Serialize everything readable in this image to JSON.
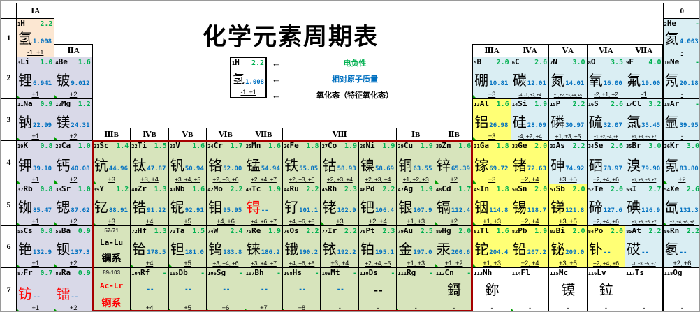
{
  "title": "化学元素周期表",
  "colors": {
    "electronegativity_text": "#00b050",
    "atomic_mass_text": "#0070c0",
    "red_accent_text": "#ff0000",
    "d_block_border": "#a50000",
    "s_block_bg": "#d9d9e8",
    "d_block_bg": "#d7e4bc",
    "p_metal_bg": "#ffff75",
    "nonmetal_bg": "#daeef3",
    "hydrogen_bg": "#fce7d2"
  },
  "legend": {
    "arrow": "←",
    "sample": {
      "z": "1",
      "sym": "H",
      "en": "2.2",
      "name": "氢",
      "mass": "1.008",
      "ox": "-1, +1"
    },
    "items": [
      {
        "label": "电负性",
        "color": "#00b050"
      },
      {
        "label": "相对原子质量",
        "color": "#0070c0"
      },
      {
        "label": "氧化态（特征氧化态）",
        "color": "#000000"
      }
    ]
  },
  "periods": [
    "1",
    "2",
    "3",
    "4",
    "5",
    "6",
    "7"
  ],
  "group_headers": [
    {
      "label": "ⅠA",
      "col": 1,
      "level": "top"
    },
    {
      "label": "0",
      "col": 18,
      "level": "top"
    },
    {
      "label": "ⅡA",
      "col": 2,
      "level": "p1"
    },
    {
      "label": "ⅢA",
      "col": 13,
      "level": "p1"
    },
    {
      "label": "ⅣA",
      "col": 14,
      "level": "p1"
    },
    {
      "label": "ⅤA",
      "col": 15,
      "level": "p1"
    },
    {
      "label": "ⅥA",
      "col": 16,
      "level": "p1"
    },
    {
      "label": "ⅦA",
      "col": 17,
      "level": "p1"
    },
    {
      "label": "ⅢB",
      "col": 3,
      "level": "p3"
    },
    {
      "label": "ⅣB",
      "col": 4,
      "level": "p3"
    },
    {
      "label": "ⅤB",
      "col": 5,
      "level": "p3"
    },
    {
      "label": "ⅥB",
      "col": 6,
      "level": "p3"
    },
    {
      "label": "ⅦB",
      "col": 7,
      "level": "p3"
    },
    {
      "label": "Ⅷ",
      "col": 8,
      "span": 3,
      "level": "p3"
    },
    {
      "label": "ⅠB",
      "col": 11,
      "level": "p3"
    },
    {
      "label": "ⅡB",
      "col": 12,
      "level": "p3"
    }
  ],
  "series_cells": [
    {
      "range": "57-71",
      "sym": "La-Lu",
      "name": "镧系",
      "row": 6,
      "col": 3,
      "red": 0
    },
    {
      "range": "89-103",
      "sym": "Ac-Lr",
      "name": "锕系",
      "row": 7,
      "col": 3,
      "red": 1
    }
  ],
  "elements": [
    {
      "z": "1",
      "s": "H",
      "e": "2.2",
      "n": "氢",
      "m": "1.008",
      "o": "-1, +1",
      "r": 1,
      "c": 1,
      "b": "h"
    },
    {
      "z": "2",
      "s": "He",
      "e": "-",
      "n": "氦",
      "m": "4.003",
      "o": "-",
      "r": 1,
      "c": 18,
      "b": "n"
    },
    {
      "z": "3",
      "s": "Li",
      "e": "1.0",
      "n": "锂",
      "m": "6.941",
      "o": "+1",
      "r": 2,
      "c": 1,
      "b": "s",
      "t": 1
    },
    {
      "z": "4",
      "s": "Be",
      "e": "1.6",
      "n": "铍",
      "m": "9.012",
      "o": "+2",
      "r": 2,
      "c": 2,
      "b": "s",
      "t": 1
    },
    {
      "z": "5",
      "s": "B",
      "e": "2.0",
      "n": "硼",
      "m": "10.81",
      "o": "+3",
      "r": 2,
      "c": 13,
      "b": "n",
      "t": 1
    },
    {
      "z": "6",
      "s": "C",
      "e": "2.6",
      "n": "碳",
      "m": "12.01",
      "o": "-4, -1, +2, +4",
      "r": 2,
      "c": 14,
      "b": "n"
    },
    {
      "z": "7",
      "s": "N",
      "e": "3.0",
      "n": "氮",
      "m": "14.01",
      "o": "±1, ±2, ±3, +4, +5",
      "r": 2,
      "c": 15,
      "b": "n"
    },
    {
      "z": "8",
      "s": "O",
      "e": "3.5",
      "n": "氧",
      "m": "16.00",
      "o": "-2, ±1, +2",
      "r": 2,
      "c": 16,
      "b": "n"
    },
    {
      "z": "9",
      "s": "F",
      "e": "4.0",
      "n": "氟",
      "m": "19.00",
      "o": "-1",
      "r": 2,
      "c": 17,
      "b": "n"
    },
    {
      "z": "10",
      "s": "Ne",
      "e": "-",
      "n": "氖",
      "m": "20.18",
      "o": "-",
      "r": 2,
      "c": 18,
      "b": "n"
    },
    {
      "z": "11",
      "s": "Na",
      "e": "0.9",
      "n": "钠",
      "m": "22.99",
      "o": "+1",
      "r": 3,
      "c": 1,
      "b": "s",
      "t": 1
    },
    {
      "z": "12",
      "s": "Mg",
      "e": "1.2",
      "n": "镁",
      "m": "24.31",
      "o": "+2",
      "r": 3,
      "c": 2,
      "b": "s",
      "t": 1
    },
    {
      "z": "13",
      "s": "Al",
      "e": "1.6",
      "n": "铝",
      "m": "26.98",
      "o": "+3",
      "r": 3,
      "c": 13,
      "b": "p",
      "t": 1
    },
    {
      "z": "14",
      "s": "Si",
      "e": "1.9",
      "n": "硅",
      "m": "28.09",
      "o": "-4, +2, +4",
      "r": 3,
      "c": 14,
      "b": "n"
    },
    {
      "z": "15",
      "s": "P",
      "e": "2.2",
      "n": "磷",
      "m": "30.97",
      "o": "+1, ±3, +5",
      "r": 3,
      "c": 15,
      "b": "n"
    },
    {
      "z": "16",
      "s": "S",
      "e": "2.6",
      "n": "硫",
      "m": "32.07",
      "o": "±1, ±2, +4, +6",
      "r": 3,
      "c": 16,
      "b": "n"
    },
    {
      "z": "17",
      "s": "Cl",
      "e": "3.2",
      "n": "氯",
      "m": "35.45",
      "o": "±1, +3, +5, +7",
      "r": 3,
      "c": 17,
      "b": "n"
    },
    {
      "z": "18",
      "s": "Ar",
      "e": "-",
      "n": "氩",
      "m": "39.95",
      "o": "-",
      "r": 3,
      "c": 18,
      "b": "n"
    },
    {
      "z": "19",
      "s": "K",
      "e": "0.8",
      "n": "钾",
      "m": "39.10",
      "o": "+1",
      "r": 4,
      "c": 1,
      "b": "s",
      "t": 1
    },
    {
      "z": "20",
      "s": "Ca",
      "e": "1.0",
      "n": "钙",
      "m": "40.08",
      "o": "+2",
      "r": 4,
      "c": 2,
      "b": "s",
      "t": 1
    },
    {
      "z": "21",
      "s": "Sc",
      "e": "1.4",
      "n": "钪",
      "m": "44.96",
      "o": "+3",
      "r": 4,
      "c": 3,
      "b": "d",
      "t": 1
    },
    {
      "z": "22",
      "s": "Ti",
      "e": "1.5",
      "n": "钛",
      "m": "47.87",
      "o": "+3, +4",
      "r": 4,
      "c": 4,
      "b": "d"
    },
    {
      "z": "23",
      "s": "V",
      "e": "1.6",
      "n": "钒",
      "m": "50.94",
      "o": "+3, +4, +5",
      "r": 4,
      "c": 5,
      "b": "d"
    },
    {
      "z": "24",
      "s": "Cr",
      "e": "1.7",
      "n": "铬",
      "m": "52.00",
      "o": "+2, +3, +6",
      "r": 4,
      "c": 6,
      "b": "d"
    },
    {
      "z": "25",
      "s": "Mn",
      "e": "1.6",
      "n": "锰",
      "m": "54.94",
      "o": "+2, +4, +7",
      "r": 4,
      "c": 7,
      "b": "d"
    },
    {
      "z": "26",
      "s": "Fe",
      "e": "1.8",
      "n": "铁",
      "m": "55.85",
      "o": "+2, +3, +6",
      "r": 4,
      "c": 8,
      "b": "d"
    },
    {
      "z": "27",
      "s": "Co",
      "e": "1.9",
      "n": "钴",
      "m": "58.93",
      "o": "+2, +3, +4",
      "r": 4,
      "c": 9,
      "b": "d"
    },
    {
      "z": "28",
      "s": "Ni",
      "e": "1.9",
      "n": "镍",
      "m": "58.69",
      "o": "+2, +3, +4",
      "r": 4,
      "c": 10,
      "b": "d"
    },
    {
      "z": "29",
      "s": "Cu",
      "e": "1.9",
      "n": "铜",
      "m": "63.55",
      "o": "+1, +2, +3",
      "r": 4,
      "c": 11,
      "b": "d"
    },
    {
      "z": "30",
      "s": "Zn",
      "e": "1.6",
      "n": "锌",
      "m": "65.39",
      "o": "+2",
      "r": 4,
      "c": 12,
      "b": "d",
      "t": 1
    },
    {
      "z": "31",
      "s": "Ga",
      "e": "1.8",
      "n": "镓",
      "m": "69.72",
      "o": "+3",
      "r": 4,
      "c": 13,
      "b": "p",
      "t": 1
    },
    {
      "z": "32",
      "s": "Ge",
      "e": "2.0",
      "n": "锗",
      "m": "72.63",
      "o": "+2, +4",
      "r": 4,
      "c": 14,
      "b": "p"
    },
    {
      "z": "33",
      "s": "As",
      "e": "2.2",
      "n": "砷",
      "m": "74.92",
      "o": "±3, +5",
      "r": 4,
      "c": 15,
      "b": "n"
    },
    {
      "z": "34",
      "s": "Se",
      "e": "2.6",
      "n": "硒",
      "m": "78.97",
      "o": "±2, +4, +6",
      "r": 4,
      "c": 16,
      "b": "n"
    },
    {
      "z": "35",
      "s": "Br",
      "e": "3.0",
      "n": "溴",
      "m": "79.90",
      "o": "±1, +3, +5, +7",
      "r": 4,
      "c": 17,
      "b": "n"
    },
    {
      "z": "36",
      "s": "Kr",
      "e": "3.0",
      "n": "氪",
      "m": "83.80",
      "o": "+2",
      "r": 4,
      "c": 18,
      "b": "n",
      "t": 1
    },
    {
      "z": "37",
      "s": "Rb",
      "e": "0.8",
      "n": "铷",
      "m": "85.47",
      "o": "+1",
      "r": 5,
      "c": 1,
      "b": "s",
      "t": 1
    },
    {
      "z": "38",
      "s": "Sr",
      "e": "1.0",
      "n": "锶",
      "m": "87.62",
      "o": "+2",
      "r": 5,
      "c": 2,
      "b": "s",
      "t": 1
    },
    {
      "z": "39",
      "s": "Y",
      "e": "1.2",
      "n": "钇",
      "m": "88.91",
      "o": "+3",
      "r": 5,
      "c": 3,
      "b": "d",
      "t": 1
    },
    {
      "z": "40",
      "s": "Zr",
      "e": "1.3",
      "n": "锆",
      "m": "91.22",
      "o": "+4",
      "r": 5,
      "c": 4,
      "b": "d"
    },
    {
      "z": "41",
      "s": "Nb",
      "e": "1.6",
      "n": "铌",
      "m": "92.91",
      "o": "+5",
      "r": 5,
      "c": 5,
      "b": "d"
    },
    {
      "z": "42",
      "s": "Mo",
      "e": "2.2",
      "n": "钼",
      "m": "95.95",
      "o": "+4, +6",
      "r": 5,
      "c": 6,
      "b": "d"
    },
    {
      "z": "43",
      "s": "Tc",
      "e": "1.9",
      "n": "锝",
      "m": "--",
      "o": "+4, +6, +7",
      "r": 5,
      "c": 7,
      "b": "d",
      "red": 1
    },
    {
      "z": "44",
      "s": "Ru",
      "e": "2.2",
      "n": "钌",
      "m": "101.1",
      "o": "+4, +6, +8",
      "r": 5,
      "c": 8,
      "b": "d"
    },
    {
      "z": "45",
      "s": "Rh",
      "e": "2.3",
      "n": "铑",
      "m": "102.9",
      "o": "+3",
      "r": 5,
      "c": 9,
      "b": "d",
      "t": 1
    },
    {
      "z": "46",
      "s": "Pd",
      "e": "2.2",
      "n": "钯",
      "m": "106.4",
      "o": "+2, +4",
      "r": 5,
      "c": 10,
      "b": "d"
    },
    {
      "z": "47",
      "s": "Ag",
      "e": "1.9",
      "n": "银",
      "m": "107.9",
      "o": "+1, +3",
      "r": 5,
      "c": 11,
      "b": "d"
    },
    {
      "z": "48",
      "s": "Cd",
      "e": "1.7",
      "n": "镉",
      "m": "112.4",
      "o": "+2",
      "r": 5,
      "c": 12,
      "b": "d",
      "t": 1
    },
    {
      "z": "49",
      "s": "In",
      "e": "1.8",
      "n": "铟",
      "m": "114.8",
      "o": "+1, +3",
      "r": 5,
      "c": 13,
      "b": "p",
      "t": 1
    },
    {
      "z": "50",
      "s": "Sn",
      "e": "2.0",
      "n": "锡",
      "m": "118.7",
      "o": "+2, +4",
      "r": 5,
      "c": 14,
      "b": "p"
    },
    {
      "z": "51",
      "s": "Sb",
      "e": "2.0",
      "n": "锑",
      "m": "121.8",
      "o": "+3, +5",
      "r": 5,
      "c": 15,
      "b": "p"
    },
    {
      "z": "52",
      "s": "Te",
      "e": "2.0",
      "n": "碲",
      "m": "127.6",
      "o": "±2, +4, +6",
      "r": 5,
      "c": 16,
      "b": "n"
    },
    {
      "z": "53",
      "s": "I",
      "e": "2.7",
      "n": "碘",
      "m": "126.9",
      "o": "±1, +3, +5, +7",
      "r": 5,
      "c": 17,
      "b": "n"
    },
    {
      "z": "54",
      "s": "Xe",
      "e": "2.6",
      "n": "氙",
      "m": "131.3",
      "o": "+2, +4, +6, +8",
      "r": 5,
      "c": 18,
      "b": "n",
      "t": 1
    },
    {
      "z": "55",
      "s": "Cs",
      "e": "0.8",
      "n": "铯",
      "m": "132.9",
      "o": "+1",
      "r": 6,
      "c": 1,
      "b": "s",
      "t": 1
    },
    {
      "z": "56",
      "s": "Ba",
      "e": "0.9",
      "n": "钡",
      "m": "137.3",
      "o": "+2",
      "r": 6,
      "c": 2,
      "b": "s",
      "t": 1
    },
    {
      "z": "72",
      "s": "Hf",
      "e": "1.3",
      "n": "铪",
      "m": "178.5",
      "o": "+4",
      "r": 6,
      "c": 4,
      "b": "d",
      "t": 1
    },
    {
      "z": "73",
      "s": "Ta",
      "e": "1.5",
      "n": "钽",
      "m": "181.0",
      "o": "+5",
      "r": 6,
      "c": 5,
      "b": "d",
      "t": 1
    },
    {
      "z": "74",
      "s": "W",
      "e": "2.4",
      "n": "钨",
      "m": "183.8",
      "o": "+3, +4, +6",
      "r": 6,
      "c": 6,
      "b": "d"
    },
    {
      "z": "75",
      "s": "Re",
      "e": "1.9",
      "n": "铼",
      "m": "186.2",
      "o": "+3, +4, +7",
      "r": 6,
      "c": 7,
      "b": "d"
    },
    {
      "z": "76",
      "s": "Os",
      "e": "2.2",
      "n": "锇",
      "m": "190.2",
      "o": "+4, +6, +8",
      "r": 6,
      "c": 8,
      "b": "d"
    },
    {
      "z": "77",
      "s": "Ir",
      "e": "2.2",
      "n": "铱",
      "m": "192.2",
      "o": "+3, +4",
      "r": 6,
      "c": 9,
      "b": "d"
    },
    {
      "z": "78",
      "s": "Pt",
      "e": "2.3",
      "n": "铂",
      "m": "195.1",
      "o": "+2, +4, +5",
      "r": 6,
      "c": 10,
      "b": "d"
    },
    {
      "z": "79",
      "s": "Au",
      "e": "2.5",
      "n": "金",
      "m": "197.0",
      "o": "+1, +3",
      "r": 6,
      "c": 11,
      "b": "d"
    },
    {
      "z": "80",
      "s": "Hg",
      "e": "2.0",
      "n": "汞",
      "m": "200.6",
      "o": "+1, +2",
      "r": 6,
      "c": 12,
      "b": "d",
      "t": 1
    },
    {
      "z": "81",
      "s": "Tl",
      "e": "1.6",
      "n": "铊",
      "m": "204.4",
      "o": "+1, +3",
      "r": 6,
      "c": 13,
      "b": "p",
      "t": 1
    },
    {
      "z": "82",
      "s": "Pb",
      "e": "1.9",
      "n": "铅",
      "m": "207.2",
      "o": "+2, +4",
      "r": 6,
      "c": 14,
      "b": "p"
    },
    {
      "z": "83",
      "s": "Bi",
      "e": "2.0",
      "n": "铋",
      "m": "209.0",
      "o": "+3, +5",
      "r": 6,
      "c": 15,
      "b": "p"
    },
    {
      "z": "84",
      "s": "Po",
      "e": "2.0",
      "n": "钋",
      "m": "--",
      "o": "+2, +4, +6",
      "r": 6,
      "c": 16,
      "b": "p"
    },
    {
      "z": "85",
      "s": "At",
      "e": "2.2",
      "n": "砹",
      "m": "--",
      "o": "-1, +3, +5, +7",
      "r": 6,
      "c": 17,
      "b": "n"
    },
    {
      "z": "86",
      "s": "Rn",
      "e": "2.2",
      "n": "氡",
      "m": "--",
      "o": "+2, +6",
      "r": 6,
      "c": 18,
      "b": "n"
    },
    {
      "z": "87",
      "s": "Fr",
      "e": "0.7",
      "n": "钫",
      "m": "--",
      "o": "+1",
      "r": 7,
      "c": 1,
      "b": "s",
      "red": 1,
      "t": 1
    },
    {
      "z": "88",
      "s": "Ra",
      "e": "0.9",
      "n": "镭",
      "m": "--",
      "o": "+2",
      "r": 7,
      "c": 2,
      "b": "s",
      "red": 1,
      "t": 1
    },
    {
      "z": "104",
      "s": "Rf",
      "e": "-",
      "n": "",
      "m": "--",
      "o": "+4",
      "r": 7,
      "c": 4,
      "b": "d",
      "t": 1
    },
    {
      "z": "105",
      "s": "Db",
      "e": "-",
      "n": "",
      "m": "--",
      "o": "+5",
      "r": 7,
      "c": 5,
      "b": "d",
      "t": 1
    },
    {
      "z": "106",
      "s": "Sg",
      "e": "-",
      "n": "",
      "m": "--",
      "o": "+6",
      "r": 7,
      "c": 6,
      "b": "d",
      "t": 1
    },
    {
      "z": "107",
      "s": "Bh",
      "e": "-",
      "n": "",
      "m": "--",
      "o": "+7",
      "r": 7,
      "c": 7,
      "b": "d",
      "t": 1
    },
    {
      "z": "108",
      "s": "Hs",
      "e": "-",
      "n": "",
      "m": "--",
      "o": "+8",
      "r": 7,
      "c": 8,
      "b": "d",
      "t": 1
    },
    {
      "z": "109",
      "s": "Mt",
      "e": "-",
      "n": "",
      "m": "--",
      "o": "-",
      "r": 7,
      "c": 9,
      "b": "d"
    },
    {
      "z": "110",
      "s": "Ds",
      "e": "-",
      "n": "--",
      "m": "",
      "o": "-",
      "r": 7,
      "c": 10,
      "b": "d"
    },
    {
      "z": "111",
      "s": "Rg",
      "e": "-",
      "n": "",
      "m": "",
      "o": "-",
      "r": 7,
      "c": 11,
      "b": "d",
      "t": 1
    },
    {
      "z": "112",
      "s": "Cn",
      "e": "-",
      "n": "鎶",
      "m": "",
      "o": "-",
      "r": 7,
      "c": 12,
      "b": "d"
    },
    {
      "z": "113",
      "s": "Nh",
      "e": "",
      "n": "鉨",
      "m": "",
      "o": "-",
      "r": 7,
      "c": 13,
      "b": "w"
    },
    {
      "z": "114",
      "s": "Fl",
      "e": "",
      "n": "",
      "m": "",
      "o": "-",
      "r": 7,
      "c": 14,
      "b": "w",
      "t": 1
    },
    {
      "z": "115",
      "s": "Mc",
      "e": "",
      "n": "镆",
      "m": "",
      "o": "-",
      "r": 7,
      "c": 15,
      "b": "w"
    },
    {
      "z": "116",
      "s": "Lv",
      "e": "",
      "n": "鉝",
      "m": "",
      "o": "-",
      "r": 7,
      "c": 16,
      "b": "w"
    },
    {
      "z": "117",
      "s": "Ts",
      "e": "",
      "n": "",
      "m": "",
      "o": "-",
      "r": 7,
      "c": 17,
      "b": "w"
    },
    {
      "z": "118",
      "s": "Og",
      "e": "",
      "n": "",
      "m": "",
      "o": "-",
      "r": 7,
      "c": 18,
      "b": "w"
    }
  ]
}
